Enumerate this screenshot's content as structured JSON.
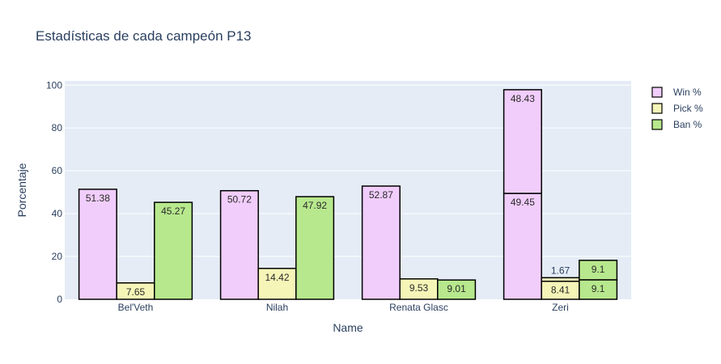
{
  "chart_data": {
    "type": "bar",
    "barmode": "group-stacked",
    "title": "Estadísticas de cada campeón P13",
    "xlabel": "Name",
    "ylabel": "Porcentaje",
    "ylim": [
      0,
      102
    ],
    "yticks": [
      0,
      20,
      40,
      60,
      80,
      100
    ],
    "grid": true,
    "legend_position": "top-right",
    "categories": [
      "Bel'Veth",
      "Nilah",
      "Renata Glasc",
      "Zeri"
    ],
    "series": [
      {
        "name": "Win %",
        "color": "#f1cdfb",
        "segments": [
          [
            51.38
          ],
          [
            50.72
          ],
          [
            52.87
          ],
          [
            49.45,
            48.43
          ]
        ],
        "labels": [
          [
            "51.38"
          ],
          [
            "50.72"
          ],
          [
            "52.87"
          ],
          [
            "49.45",
            "48.43"
          ]
        ]
      },
      {
        "name": "Pick %",
        "color": "#f5f5b8",
        "segments": [
          [
            7.65
          ],
          [
            14.42
          ],
          [
            9.53
          ],
          [
            8.41,
            1.67
          ]
        ],
        "labels": [
          [
            "7.65"
          ],
          [
            "14.42"
          ],
          [
            "9.53"
          ],
          [
            "8.41",
            "1.67"
          ]
        ]
      },
      {
        "name": "Ban %",
        "color": "#b7e88d",
        "segments": [
          [
            45.27
          ],
          [
            47.92
          ],
          [
            9.01
          ],
          [
            9.1,
            9.1
          ]
        ],
        "labels": [
          [
            "45.27"
          ],
          [
            "47.92"
          ],
          [
            "9.01"
          ],
          [
            "9.1",
            "9.1"
          ]
        ]
      }
    ]
  }
}
